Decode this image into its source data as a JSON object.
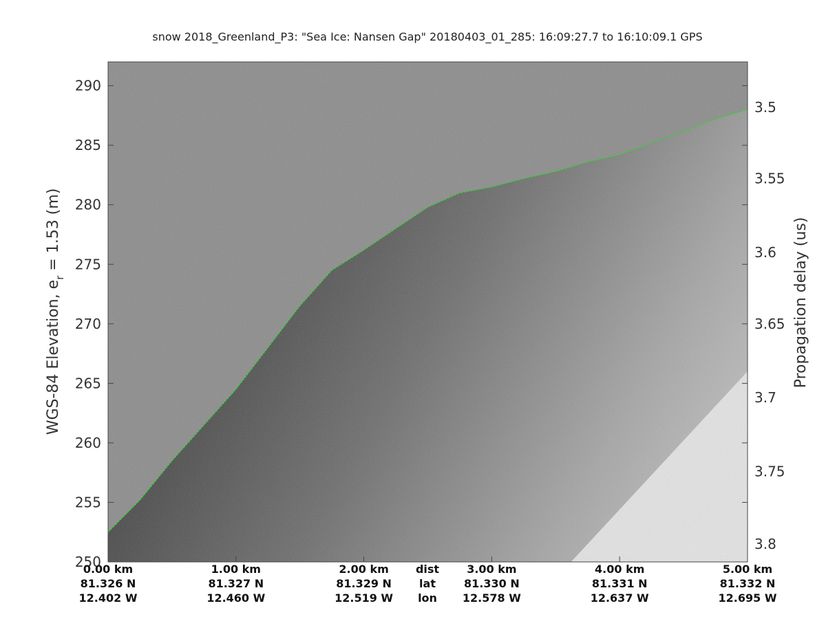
{
  "chart_data": {
    "type": "heatmap",
    "title": "snow 2018_Greenland_P3: \"Sea Ice: Nansen Gap\"  20180403_01_285: 16:09:27.7 to 16:10:09.1 GPS",
    "ylabel_parts": [
      "WGS-84 Elevation, e",
      "r",
      " = 1.53 (m)"
    ],
    "y2label": "Propagation delay (us)",
    "xlim": [
      0,
      5
    ],
    "ylim": [
      250,
      292
    ],
    "yticks": [
      250,
      255,
      260,
      265,
      270,
      275,
      280,
      285,
      290
    ],
    "y2_ticks": [
      {
        "label": "3.5",
        "elev": 288.2
      },
      {
        "label": "3.55",
        "elev": 282.2
      },
      {
        "label": "3.6",
        "elev": 276.0
      },
      {
        "label": "3.65",
        "elev": 270.0
      },
      {
        "label": "3.7",
        "elev": 263.8
      },
      {
        "label": "3.75",
        "elev": 257.6
      },
      {
        "label": "3.8",
        "elev": 251.5
      }
    ],
    "x_ticks": [
      {
        "x": 0,
        "dist": "0.00 km",
        "lat": "81.326 N",
        "lon": "12.402 W"
      },
      {
        "x": 1,
        "dist": "1.00 km",
        "lat": "81.327 N",
        "lon": "12.460 W"
      },
      {
        "x": 2,
        "dist": "2.00 km",
        "lat": "81.329 N",
        "lon": "12.519 W"
      },
      {
        "x": 3,
        "dist": "3.00 km",
        "lat": "81.330 N",
        "lon": "12.578 W"
      },
      {
        "x": 4,
        "dist": "4.00 km",
        "lat": "81.331 N",
        "lon": "12.637 W"
      },
      {
        "x": 5,
        "dist": "5.00 km",
        "lat": "81.332 N",
        "lon": "12.695 W"
      }
    ],
    "row_labels": {
      "dist": "dist",
      "lat": "lat",
      "lon": "lon"
    },
    "surface_series": {
      "name": "",
      "color": "#22dd22",
      "x": [
        0.0,
        0.25,
        0.5,
        0.75,
        1.0,
        1.25,
        1.5,
        1.75,
        2.0,
        2.25,
        2.5,
        2.75,
        3.0,
        3.25,
        3.5,
        3.75,
        4.0,
        4.25,
        4.5,
        4.75,
        5.0
      ],
      "y": [
        252.5,
        255.2,
        258.5,
        261.5,
        264.5,
        268.0,
        271.5,
        274.5,
        276.2,
        278.0,
        279.8,
        281.0,
        281.5,
        282.2,
        282.8,
        283.6,
        284.2,
        285.2,
        286.2,
        287.2,
        288.0
      ]
    },
    "no_data_wedge": {
      "x": [
        3.62,
        5.0
      ],
      "y": [
        250,
        266
      ]
    },
    "grid": false
  }
}
